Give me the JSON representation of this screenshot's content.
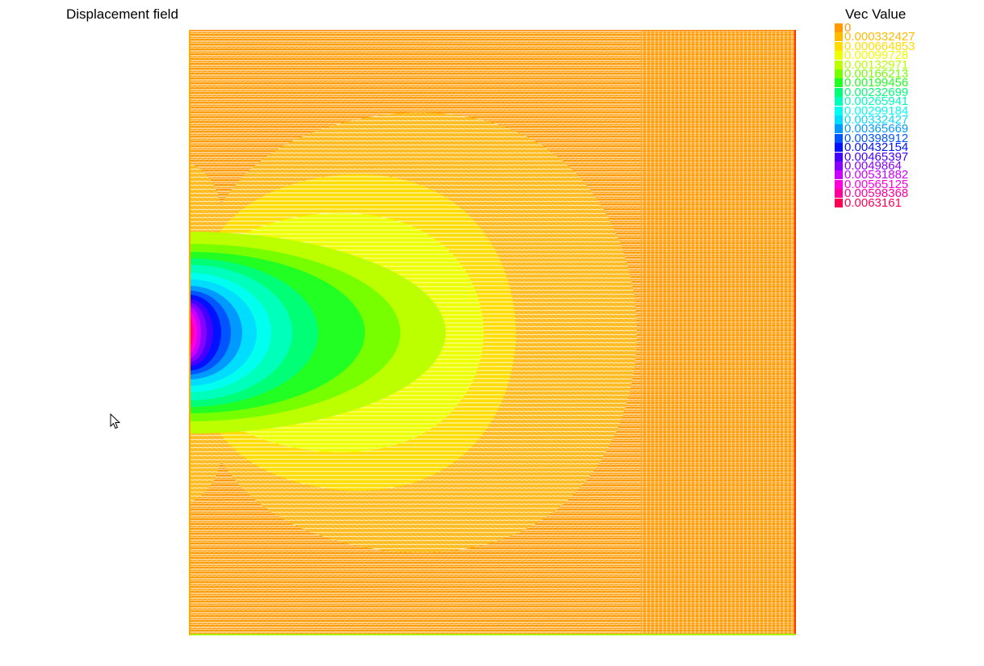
{
  "window": {
    "title": "Displacement field"
  },
  "chart_data": {
    "type": "heatmap",
    "title": "Displacement field",
    "xlabel": "",
    "ylabel": "",
    "grid": false,
    "legend_placement": "top-right",
    "legend": {
      "title": "Vec Value",
      "entries": [
        {
          "label": "0",
          "color": "#ff9900"
        },
        {
          "label": "0.000332427",
          "color": "#ffbb00"
        },
        {
          "label": "0.000664853",
          "color": "#ffdd00"
        },
        {
          "label": "0.00099728",
          "color": "#eeff00"
        },
        {
          "label": "0.00132971",
          "color": "#bbff00"
        },
        {
          "label": "0.00166213",
          "color": "#77ff00"
        },
        {
          "label": "0.00199456",
          "color": "#22ff22"
        },
        {
          "label": "0.00232699",
          "color": "#00ff77"
        },
        {
          "label": "0.00265941",
          "color": "#00ffbb"
        },
        {
          "label": "0.00299184",
          "color": "#00ffee"
        },
        {
          "label": "0.00332427",
          "color": "#00ddff"
        },
        {
          "label": "0.00365669",
          "color": "#0099ff"
        },
        {
          "label": "0.00398912",
          "color": "#0055ff"
        },
        {
          "label": "0.00432154",
          "color": "#0011ff"
        },
        {
          "label": "0.00465397",
          "color": "#4400ff"
        },
        {
          "label": "0.0049864",
          "color": "#8800ff"
        },
        {
          "label": "0.00531882",
          "color": "#cc00ff"
        },
        {
          "label": "0.00565125",
          "color": "#ff00dd"
        },
        {
          "label": "0.00598368",
          "color": "#ff0099"
        },
        {
          "label": "0.0063161",
          "color": "#ff0055"
        }
      ]
    },
    "field": {
      "max_value": 0.0063161,
      "max_location": "left-edge-center",
      "description_colors": {
        "background": "#ff9900",
        "outer_band": "#ffcc33",
        "mid_band": "#eeff00"
      }
    }
  },
  "cursor": {
    "icon": "arrow-pointer-icon"
  }
}
